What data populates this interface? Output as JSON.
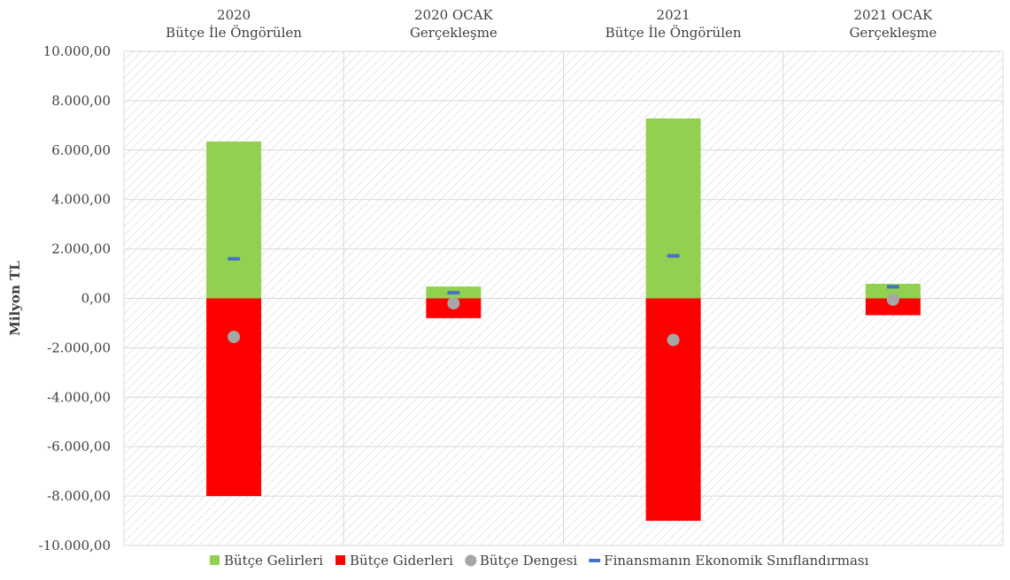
{
  "chart_data": {
    "type": "bar",
    "stacked": true,
    "categories": [
      [
        "2020",
        "Bütçe  İle Öngörülen"
      ],
      [
        "2020 OCAK",
        "Gerçekleşme"
      ],
      [
        "2021",
        "Bütçe İle Öngörülen"
      ],
      [
        "2021 OCAK",
        "Gerçekleşme"
      ]
    ],
    "series": [
      {
        "name": "Bütçe Gelirleri",
        "kind": "bar",
        "color": "#92d050",
        "values": [
          6350,
          480,
          7280,
          590
        ]
      },
      {
        "name": "Bütçe Giderleri",
        "kind": "bar",
        "color": "#ff0000",
        "values": [
          -8000,
          -800,
          -9000,
          -680
        ]
      },
      {
        "name": "Bütçe Dengesi",
        "kind": "marker-circle",
        "color": "#a6a6a6",
        "values": [
          -1560,
          -200,
          -1680,
          -50
        ]
      },
      {
        "name": "Finansmanın Ekonomik Sınıflandırması",
        "kind": "marker-dash",
        "color": "#4472c4",
        "values": [
          1600,
          230,
          1720,
          470
        ]
      }
    ],
    "ylabel": "Milyon TL",
    "xlabel": "",
    "ylim": [
      -10000,
      10000
    ],
    "yticks": [
      "10.000,00",
      "8.000,00",
      "6.000,00",
      "4.000,00",
      "2.000,00",
      "0,00",
      "-2.000,00",
      "-4.000,00",
      "-6.000,00",
      "-8.000,00",
      "-10.000,00"
    ],
    "ytick_values": [
      10000,
      8000,
      6000,
      4000,
      2000,
      0,
      -2000,
      -4000,
      -6000,
      -8000,
      -10000
    ],
    "grid": true,
    "category_labels_position": "top",
    "plot_background": "diagonal-hatch-light-gray",
    "legend_position": "bottom"
  }
}
